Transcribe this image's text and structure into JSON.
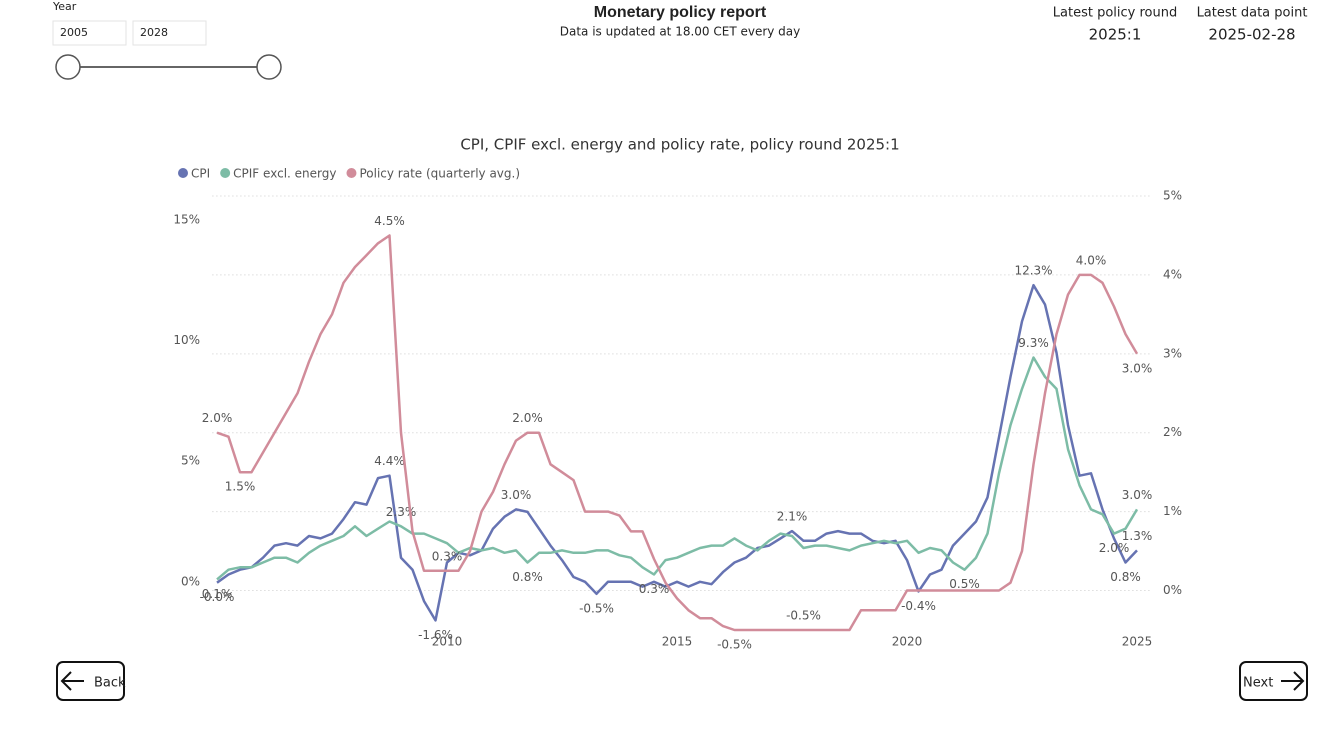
{
  "filter": {
    "label": "Year",
    "from": "2005",
    "to": "2028"
  },
  "header": {
    "title": "Monetary policy report",
    "subtitle": "Data is updated at 18.00 CET every day"
  },
  "cards": [
    {
      "label": "Latest policy round",
      "value": "2025:1"
    },
    {
      "label": "Latest data point",
      "value": "2025-02-28"
    }
  ],
  "navigation": {
    "back": "Back",
    "next": "Next"
  },
  "chart_data": {
    "type": "line",
    "title": "CPI, CPIF excl. energy and policy rate, policy round 2025:1",
    "x": [
      2005,
      2005.25,
      2005.5,
      2005.75,
      2006,
      2006.25,
      2006.5,
      2006.75,
      2007,
      2007.25,
      2007.5,
      2007.75,
      2008,
      2008.25,
      2008.5,
      2008.75,
      2009,
      2009.25,
      2009.5,
      2009.75,
      2010,
      2010.25,
      2010.5,
      2010.75,
      2011,
      2011.25,
      2011.5,
      2011.75,
      2012,
      2012.25,
      2012.5,
      2012.75,
      2013,
      2013.25,
      2013.5,
      2013.75,
      2014,
      2014.25,
      2014.5,
      2014.75,
      2015,
      2015.25,
      2015.5,
      2015.75,
      2016,
      2016.25,
      2016.5,
      2016.75,
      2017,
      2017.25,
      2017.5,
      2017.75,
      2018,
      2018.25,
      2018.5,
      2018.75,
      2019,
      2019.25,
      2019.5,
      2019.75,
      2020,
      2020.25,
      2020.5,
      2020.75,
      2021,
      2021.25,
      2021.5,
      2021.75,
      2022,
      2022.25,
      2022.5,
      2022.75,
      2023,
      2023.25,
      2023.5,
      2023.75,
      2024,
      2024.25,
      2024.5,
      2024.75,
      2025
    ],
    "xlim": [
      2004.9,
      2025.4
    ],
    "xticks": [
      2010,
      2015,
      2020,
      2025
    ],
    "ylim": [
      -2,
      16
    ],
    "yticks": [
      {
        "value": 0,
        "label": "0%"
      },
      {
        "value": 5,
        "label": "5%"
      },
      {
        "value": 10,
        "label": "10%"
      },
      {
        "value": 15,
        "label": "15%"
      }
    ],
    "y2lim": [
      -0.5,
      5
    ],
    "y2ticks": [
      {
        "value": 0,
        "label": "0%"
      },
      {
        "value": 1,
        "label": "1%"
      },
      {
        "value": 2,
        "label": "2%"
      },
      {
        "value": 3,
        "label": "3%"
      },
      {
        "value": 4,
        "label": "4%"
      },
      {
        "value": 5,
        "label": "5%"
      }
    ],
    "grid": true,
    "legend": "top-left",
    "series": [
      {
        "name": "CPI",
        "color": "#6673b2",
        "values": [
          -0.04,
          0.3,
          0.5,
          0.6,
          1.0,
          1.5,
          1.6,
          1.5,
          1.9,
          1.8,
          2.0,
          2.6,
          3.3,
          3.2,
          4.3,
          4.4,
          1.0,
          0.5,
          -0.8,
          -1.6,
          0.8,
          1.2,
          1.1,
          1.3,
          2.2,
          2.7,
          3.0,
          2.9,
          2.2,
          1.5,
          0.9,
          0.2,
          0.0,
          -0.5,
          0.0,
          0.0,
          0.0,
          -0.2,
          0.0,
          -0.2,
          0.0,
          -0.2,
          0.0,
          -0.1,
          0.4,
          0.8,
          1.0,
          1.4,
          1.5,
          1.8,
          2.1,
          1.7,
          1.7,
          2.0,
          2.1,
          2.0,
          2.0,
          1.7,
          1.6,
          1.7,
          0.9,
          -0.4,
          0.3,
          0.5,
          1.5,
          2.0,
          2.5,
          3.5,
          6.0,
          8.5,
          10.8,
          12.3,
          11.5,
          9.5,
          6.5,
          4.4,
          4.5,
          3.0,
          1.8,
          0.8,
          1.3
        ],
        "value_labels": [
          "-0.0%",
          null,
          null,
          null,
          null,
          null,
          null,
          null,
          null,
          null,
          null,
          null,
          null,
          null,
          null,
          "4.4%",
          null,
          null,
          null,
          "-1.6%",
          null,
          null,
          null,
          null,
          null,
          null,
          "3.0%",
          null,
          null,
          null,
          null,
          null,
          null,
          "-0.5%",
          null,
          null,
          null,
          null,
          null,
          null,
          null,
          null,
          null,
          null,
          null,
          null,
          null,
          null,
          null,
          null,
          "2.1%",
          null,
          null,
          null,
          null,
          null,
          null,
          null,
          null,
          null,
          null,
          "-0.4%",
          null,
          null,
          null,
          null,
          null,
          null,
          null,
          null,
          null,
          "12.3%",
          null,
          null,
          null,
          null,
          null,
          null,
          null,
          "0.8%",
          "1.3%"
        ]
      },
      {
        "name": "CPIF excl. energy",
        "color": "#7dbca6",
        "values": [
          0.1,
          0.5,
          0.6,
          0.6,
          0.8,
          1.0,
          1.0,
          0.8,
          1.2,
          1.5,
          1.7,
          1.9,
          2.3,
          1.9,
          2.2,
          2.5,
          2.3,
          2.0,
          2.0,
          1.8,
          1.6,
          1.2,
          1.4,
          1.3,
          1.4,
          1.2,
          1.3,
          0.8,
          1.2,
          1.2,
          1.3,
          1.2,
          1.2,
          1.3,
          1.3,
          1.1,
          1.0,
          0.6,
          0.3,
          0.9,
          1.0,
          1.2,
          1.4,
          1.5,
          1.5,
          1.8,
          1.5,
          1.3,
          1.7,
          2.0,
          1.9,
          1.4,
          1.5,
          1.5,
          1.4,
          1.3,
          1.5,
          1.6,
          1.7,
          1.6,
          1.7,
          1.2,
          1.4,
          1.3,
          0.8,
          0.5,
          1.0,
          2.0,
          4.5,
          6.5,
          8.0,
          9.3,
          8.5,
          8.0,
          5.5,
          4.0,
          3.0,
          2.8,
          2.0,
          2.2,
          3.0
        ],
        "value_labels": [
          "0.1%",
          null,
          null,
          null,
          null,
          null,
          null,
          null,
          null,
          null,
          null,
          null,
          null,
          null,
          null,
          null,
          "2.3%",
          null,
          null,
          null,
          null,
          null,
          null,
          null,
          null,
          null,
          null,
          "0.8%",
          null,
          null,
          null,
          null,
          null,
          null,
          null,
          null,
          null,
          null,
          "0.3%",
          null,
          null,
          null,
          null,
          null,
          null,
          null,
          null,
          null,
          null,
          null,
          null,
          null,
          null,
          null,
          null,
          null,
          null,
          null,
          null,
          null,
          null,
          null,
          null,
          null,
          null,
          "0.5%",
          null,
          null,
          null,
          null,
          null,
          "9.3%",
          null,
          null,
          null,
          null,
          null,
          null,
          "2.0%",
          null,
          "3.0%"
        ]
      },
      {
        "name": "Policy rate (quarterly avg.)",
        "color": "#d18c9a",
        "axis": "y2",
        "values": [
          2.0,
          1.95,
          1.5,
          1.5,
          1.75,
          2.0,
          2.25,
          2.5,
          2.9,
          3.25,
          3.5,
          3.9,
          4.1,
          4.25,
          4.4,
          4.5,
          2.0,
          0.75,
          0.25,
          0.25,
          0.25,
          0.25,
          0.5,
          1.0,
          1.25,
          1.6,
          1.9,
          2.0,
          2.0,
          1.6,
          1.5,
          1.4,
          1.0,
          1.0,
          1.0,
          0.95,
          0.75,
          0.75,
          0.4,
          0.1,
          -0.1,
          -0.25,
          -0.35,
          -0.35,
          -0.45,
          -0.5,
          -0.5,
          -0.5,
          -0.5,
          -0.5,
          -0.5,
          -0.5,
          -0.5,
          -0.5,
          -0.5,
          -0.5,
          -0.25,
          -0.25,
          -0.25,
          -0.25,
          0,
          0,
          0,
          0,
          0,
          0,
          0,
          0,
          0,
          0.1,
          0.5,
          1.6,
          2.5,
          3.25,
          3.75,
          4.0,
          4.0,
          3.9,
          3.6,
          3.25,
          3.0
        ],
        "value_labels": [
          "2.0%",
          null,
          "1.5%",
          null,
          null,
          null,
          null,
          null,
          null,
          null,
          null,
          null,
          null,
          null,
          null,
          "4.5%",
          null,
          null,
          null,
          null,
          "0.3%",
          null,
          null,
          null,
          null,
          null,
          null,
          "2.0%",
          null,
          null,
          null,
          null,
          null,
          null,
          null,
          null,
          null,
          null,
          null,
          null,
          null,
          null,
          null,
          null,
          null,
          "-0.5%",
          null,
          null,
          null,
          null,
          null,
          "-0.5%",
          null,
          null,
          null,
          null,
          null,
          null,
          null,
          null,
          null,
          null,
          null,
          null,
          null,
          null,
          null,
          null,
          null,
          null,
          null,
          null,
          null,
          null,
          null,
          null,
          "4.0%",
          null,
          null,
          null,
          "3.0%"
        ]
      }
    ]
  }
}
